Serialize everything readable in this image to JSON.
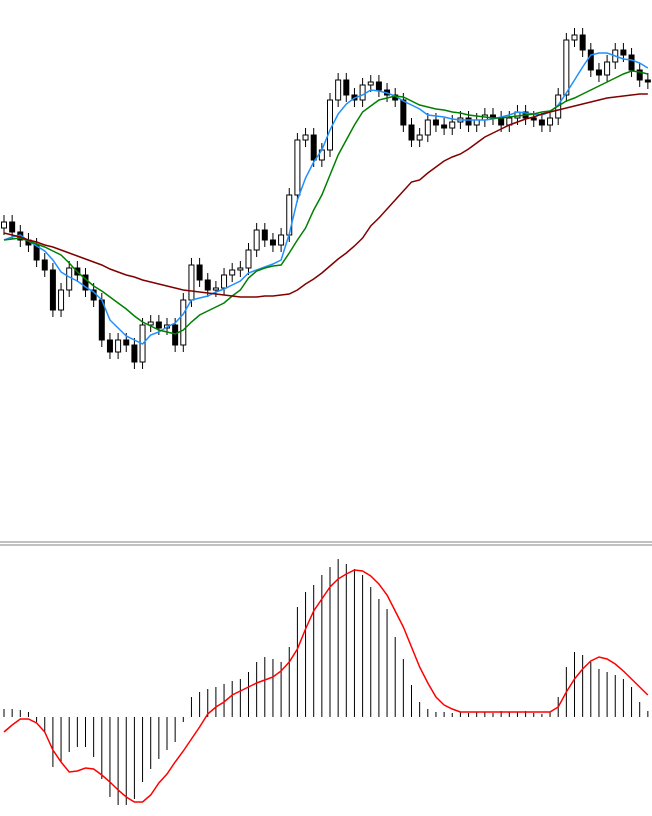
{
  "chart_data": [
    {
      "type": "candlestick",
      "ylim": [
        0,
        540
      ],
      "up_color": "#ffffff",
      "down_color": "#000000",
      "outline_color": "#000000",
      "open": [
        312,
        318,
        308,
        300,
        295,
        280,
        270,
        230,
        250,
        272,
        265,
        250,
        240,
        200,
        188,
        200,
        195,
        178,
        215,
        218,
        212,
        215,
        195,
        240,
        275,
        260,
        250,
        252,
        265,
        270,
        272,
        290,
        310,
        300,
        295,
        305,
        345,
        400,
        405,
        380,
        390,
        440,
        460,
        445,
        440,
        455,
        458,
        450,
        445,
        440,
        415,
        400,
        405,
        420,
        415,
        412,
        418,
        422,
        415,
        420,
        425,
        422,
        415,
        422,
        428,
        422,
        420,
        415,
        422,
        445,
        500,
        505,
        490,
        470,
        465,
        478,
        490,
        485,
        470,
        460
      ],
      "high": [
        325,
        325,
        315,
        307,
        302,
        287,
        277,
        257,
        279,
        279,
        272,
        257,
        247,
        207,
        207,
        207,
        202,
        222,
        225,
        225,
        222,
        222,
        247,
        282,
        282,
        267,
        259,
        272,
        277,
        279,
        297,
        317,
        317,
        307,
        312,
        352,
        407,
        412,
        412,
        397,
        447,
        467,
        467,
        452,
        462,
        465,
        465,
        457,
        452,
        447,
        422,
        412,
        427,
        427,
        422,
        425,
        429,
        429,
        427,
        432,
        432,
        429,
        429,
        435,
        435,
        429,
        427,
        429,
        452,
        507,
        512,
        512,
        497,
        477,
        485,
        497,
        497,
        492,
        477,
        467
      ],
      "low": [
        305,
        301,
        293,
        288,
        273,
        263,
        223,
        223,
        243,
        258,
        243,
        233,
        193,
        181,
        181,
        188,
        171,
        171,
        208,
        205,
        205,
        188,
        188,
        233,
        253,
        243,
        243,
        245,
        258,
        263,
        265,
        283,
        293,
        288,
        288,
        298,
        338,
        393,
        373,
        373,
        383,
        433,
        438,
        433,
        433,
        448,
        443,
        438,
        433,
        408,
        393,
        393,
        398,
        408,
        405,
        405,
        411,
        408,
        408,
        413,
        415,
        408,
        408,
        415,
        415,
        413,
        408,
        408,
        415,
        438,
        493,
        483,
        463,
        458,
        458,
        471,
        478,
        463,
        453,
        451
      ],
      "close": [
        318,
        308,
        300,
        295,
        280,
        270,
        230,
        250,
        272,
        265,
        250,
        240,
        200,
        188,
        200,
        195,
        178,
        215,
        218,
        212,
        215,
        195,
        240,
        275,
        260,
        250,
        252,
        265,
        270,
        272,
        290,
        310,
        300,
        295,
        305,
        345,
        400,
        405,
        380,
        390,
        440,
        460,
        445,
        440,
        455,
        458,
        450,
        445,
        440,
        415,
        400,
        405,
        420,
        415,
        412,
        418,
        422,
        415,
        420,
        425,
        422,
        415,
        422,
        428,
        422,
        420,
        415,
        422,
        445,
        500,
        505,
        490,
        470,
        465,
        478,
        490,
        485,
        470,
        460,
        458
      ],
      "series": [
        {
          "color": "#1e90ff",
          "values": [
            300,
            303,
            305,
            299,
            294,
            289,
            280,
            268,
            263,
            259,
            253,
            248,
            240,
            220,
            212,
            204,
            200,
            196,
            205,
            208,
            213,
            217,
            226,
            240,
            242,
            244,
            248,
            251,
            255,
            259,
            267,
            270,
            273,
            276,
            280,
            306,
            340,
            362,
            378,
            390,
            410,
            426,
            436,
            442,
            445,
            450,
            449,
            447,
            444,
            439,
            435,
            431,
            425,
            424,
            423,
            421,
            420,
            420,
            420,
            420,
            421,
            423,
            425,
            428,
            427,
            426,
            425,
            428,
            435,
            447,
            460,
            473,
            485,
            487,
            487,
            484,
            481,
            480,
            477,
            472
          ]
        },
        {
          "color": "#008000",
          "values": [
            300,
            301,
            302,
            299,
            296,
            293,
            289,
            285,
            277,
            268,
            261,
            254,
            249,
            243,
            237,
            231,
            224,
            218,
            214,
            210,
            208,
            206,
            210,
            218,
            225,
            229,
            233,
            237,
            244,
            250,
            262,
            269,
            272,
            274,
            275,
            287,
            300,
            312,
            330,
            345,
            365,
            385,
            400,
            415,
            428,
            434,
            440,
            442,
            444,
            443,
            439,
            435,
            433,
            431,
            430,
            428,
            427,
            425,
            424,
            423,
            422,
            422,
            423,
            424,
            425,
            426,
            428,
            429,
            434,
            439,
            442,
            446,
            450,
            454,
            458,
            462,
            466,
            469,
            468,
            466
          ]
        },
        {
          "color": "#800000",
          "values": [
            307,
            305,
            303,
            300,
            298,
            295,
            293,
            290,
            287,
            284,
            281,
            278,
            275,
            271,
            268,
            265,
            263,
            260,
            258,
            256,
            254,
            252,
            250,
            249,
            248,
            247,
            246,
            245,
            244,
            243,
            243,
            243,
            244,
            244,
            245,
            246,
            250,
            256,
            261,
            267,
            274,
            281,
            287,
            294,
            302,
            314,
            322,
            331,
            340,
            349,
            358,
            360,
            367,
            373,
            379,
            383,
            386,
            391,
            397,
            403,
            407,
            411,
            415,
            418,
            421,
            423,
            426,
            428,
            430,
            432,
            434,
            436,
            438,
            440,
            442,
            443,
            444,
            445,
            446,
            446
          ]
        }
      ]
    },
    {
      "type": "macd",
      "ylim": [
        -99,
        169
      ],
      "color": "#000000",
      "values": [
        8,
        8,
        7,
        5,
        -5,
        -15,
        -50,
        -45,
        -35,
        -30,
        -30,
        -40,
        -62,
        -80,
        -88,
        -88,
        -82,
        -65,
        -52,
        -42,
        -33,
        -25,
        -5,
        20,
        25,
        28,
        30,
        33,
        36,
        38,
        45,
        55,
        60,
        58,
        55,
        70,
        110,
        125,
        132,
        142,
        150,
        158,
        153,
        148,
        142,
        130,
        118,
        108,
        80,
        58,
        32,
        15,
        8,
        5,
        5,
        4,
        5,
        4,
        5,
        5,
        4,
        6,
        5,
        5,
        6,
        4,
        3,
        5,
        20,
        50,
        65,
        62,
        55,
        48,
        45,
        42,
        38,
        30,
        15,
        6
      ],
      "signal": {
        "color": "#ff0000",
        "values": [
          -15,
          -8,
          -2,
          -2,
          -6,
          -15,
          -33,
          -45,
          -55,
          -54,
          -51,
          -52,
          -58,
          -65,
          -73,
          -80,
          -85,
          -85,
          -78,
          -66,
          -57,
          -45,
          -34,
          -22,
          -10,
          3,
          10,
          15,
          22,
          26,
          30,
          34,
          37,
          40,
          46,
          55,
          68,
          88,
          106,
          118,
          130,
          138,
          143,
          147,
          146,
          141,
          133,
          122,
          106,
          90,
          70,
          50,
          34,
          20,
          12,
          8,
          5,
          5,
          5,
          5,
          5,
          5,
          5,
          5,
          5,
          5,
          5,
          5,
          10,
          25,
          38,
          48,
          56,
          60,
          58,
          53,
          46,
          38,
          30,
          22
        ]
      }
    }
  ]
}
